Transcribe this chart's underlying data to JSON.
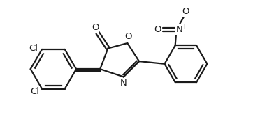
{
  "bg_color": "#ffffff",
  "line_color": "#1a1a1a",
  "line_width": 1.6,
  "font_size": 9.5,
  "figsize": [
    3.72,
    1.94
  ],
  "dpi": 100,
  "xlim": [
    0,
    10
  ],
  "ylim": [
    0,
    5.22
  ]
}
